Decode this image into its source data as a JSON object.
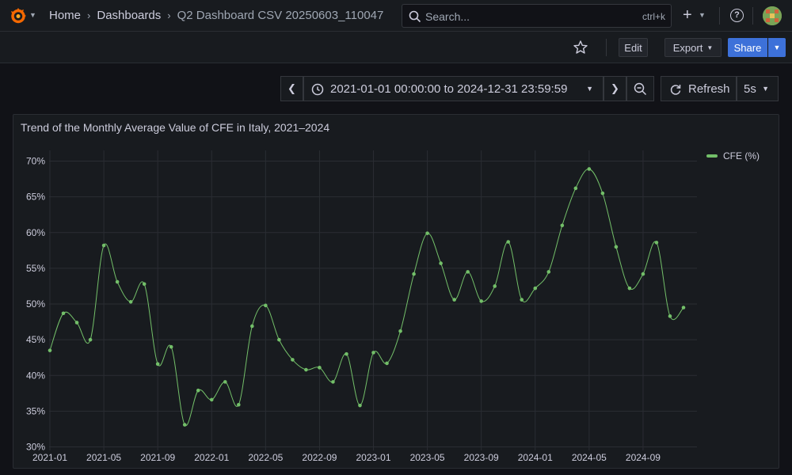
{
  "breadcrumb": {
    "items": [
      "Home",
      "Dashboards",
      "Q2 Dashboard CSV 20250603_110047"
    ]
  },
  "search": {
    "placeholder": "Search...",
    "shortcut": "ctrl+k"
  },
  "toolbar": {
    "edit_label": "Edit",
    "export_label": "Export",
    "share_label": "Share"
  },
  "timepicker": {
    "range": "2021-01-01 00:00:00 to 2024-12-31 23:59:59",
    "refresh_label": "Refresh",
    "interval": "5s"
  },
  "colors": {
    "series": "#73bf69",
    "share_button": "#3d71d9"
  },
  "panel": {
    "title": "Trend of the Monthly Average Value of CFE in Italy, 2021–2024"
  },
  "chart_data": {
    "type": "line",
    "title": "Trend of the Monthly Average Value of CFE in Italy, 2021–2024",
    "xlabel": "",
    "ylabel": "",
    "ylim": [
      29.5,
      71.5
    ],
    "yticks": [
      "30%",
      "35%",
      "40%",
      "45%",
      "50%",
      "55%",
      "60%",
      "65%",
      "70%"
    ],
    "xticks": [
      "2021-01",
      "2021-05",
      "2021-09",
      "2022-01",
      "2022-05",
      "2022-09",
      "2023-01",
      "2023-05",
      "2023-09",
      "2024-01",
      "2024-05",
      "2024-09"
    ],
    "legend_position": "top-right",
    "grid": true,
    "series": [
      {
        "name": "CFE (%)",
        "x": [
          "2021-01",
          "2021-02",
          "2021-03",
          "2021-04",
          "2021-05",
          "2021-06",
          "2021-07",
          "2021-08",
          "2021-09",
          "2021-10",
          "2021-11",
          "2021-12",
          "2022-01",
          "2022-02",
          "2022-03",
          "2022-04",
          "2022-05",
          "2022-06",
          "2022-07",
          "2022-08",
          "2022-09",
          "2022-10",
          "2022-11",
          "2022-12",
          "2023-01",
          "2023-02",
          "2023-03",
          "2023-04",
          "2023-05",
          "2023-06",
          "2023-07",
          "2023-08",
          "2023-09",
          "2023-10",
          "2023-11",
          "2023-12",
          "2024-01",
          "2024-02",
          "2024-03",
          "2024-04",
          "2024-05",
          "2024-06",
          "2024-07",
          "2024-08",
          "2024-09",
          "2024-10",
          "2024-11",
          "2024-12"
        ],
        "values": [
          43.5,
          48.7,
          47.4,
          45.0,
          58.2,
          53.1,
          50.3,
          52.8,
          41.6,
          44.0,
          33.1,
          37.9,
          36.6,
          39.1,
          35.9,
          46.9,
          49.8,
          45.0,
          42.2,
          40.8,
          41.1,
          39.1,
          43.0,
          35.8,
          43.2,
          41.7,
          46.2,
          54.2,
          59.9,
          55.7,
          50.6,
          54.5,
          50.4,
          52.5,
          58.7,
          50.6,
          52.2,
          54.5,
          61.0,
          66.2,
          68.9,
          65.5,
          58.0,
          52.2,
          54.2,
          58.6,
          48.3,
          49.5
        ]
      }
    ]
  }
}
